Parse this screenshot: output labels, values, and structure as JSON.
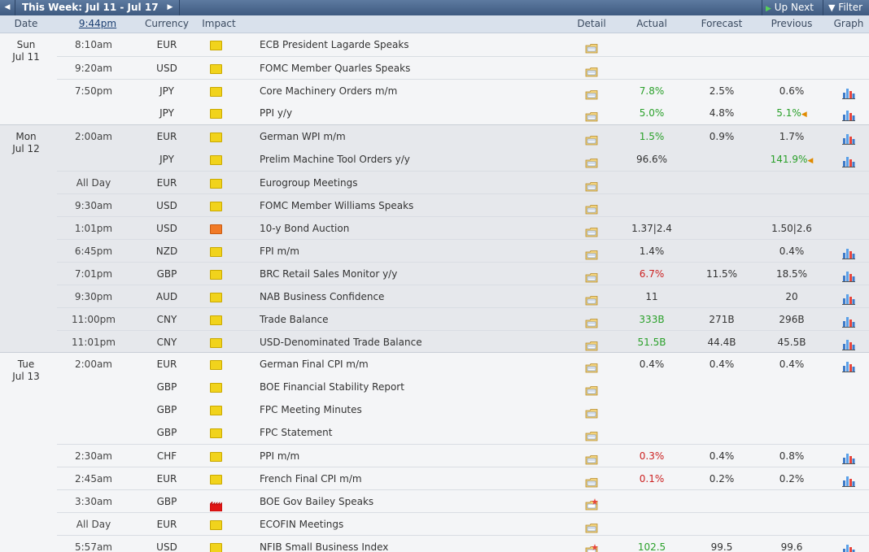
{
  "topbar": {
    "week_label": "This Week: Jul 11 - Jul 17",
    "up_next_label": "Up Next",
    "filter_label": "Filter"
  },
  "columns": {
    "date": "Date",
    "time": "9:44pm",
    "currency": "Currency",
    "impact": "Impact",
    "detail": "Detail",
    "actual": "Actual",
    "forecast": "Forecast",
    "previous": "Previous",
    "graph": "Graph"
  },
  "colors": {
    "accent_bar": "#3e5a80",
    "good": "#2aa02a",
    "bad": "#cc2222"
  },
  "days": [
    {
      "day": "Sun",
      "date": "Jul 11",
      "events": [
        {
          "time": "8:10am",
          "currency": "EUR",
          "impact": "yellow",
          "event": "ECB President Lagarde Speaks",
          "detail_icon": "folder-icon",
          "actual": "",
          "actual_class": "",
          "forecast": "",
          "previous": "",
          "revised": false,
          "graph": false,
          "sep": false
        },
        {
          "time": "9:20am",
          "currency": "USD",
          "impact": "yellow",
          "event": "FOMC Member Quarles Speaks",
          "detail_icon": "folder-icon",
          "actual": "",
          "actual_class": "",
          "forecast": "",
          "previous": "",
          "revised": false,
          "graph": false,
          "sep": true
        },
        {
          "time": "7:50pm",
          "currency": "JPY",
          "impact": "yellow",
          "event": "Core Machinery Orders m/m",
          "detail_icon": "folder-icon",
          "actual": "7.8%",
          "actual_class": "good",
          "forecast": "2.5%",
          "previous": "0.6%",
          "revised": false,
          "graph": true,
          "sep": true
        },
        {
          "time": "",
          "currency": "JPY",
          "impact": "yellow",
          "event": "PPI y/y",
          "detail_icon": "folder-icon",
          "actual": "5.0%",
          "actual_class": "good",
          "forecast": "4.8%",
          "previous": "5.1%",
          "previous_class": "good",
          "revised": true,
          "graph": true,
          "sep": false
        }
      ]
    },
    {
      "day": "Mon",
      "date": "Jul 12",
      "events": [
        {
          "time": "2:00am",
          "currency": "EUR",
          "impact": "yellow",
          "event": "German WPI m/m",
          "detail_icon": "folder-icon",
          "actual": "1.5%",
          "actual_class": "good",
          "forecast": "0.9%",
          "previous": "1.7%",
          "revised": false,
          "graph": true,
          "sep": false
        },
        {
          "time": "",
          "currency": "JPY",
          "impact": "yellow",
          "event": "Prelim Machine Tool Orders y/y",
          "detail_icon": "folder-icon",
          "actual": "96.6%",
          "actual_class": "",
          "forecast": "",
          "previous": "141.9%",
          "previous_class": "good",
          "revised": true,
          "graph": true,
          "sep": false
        },
        {
          "time": "All Day",
          "currency": "EUR",
          "impact": "yellow",
          "event": "Eurogroup Meetings",
          "detail_icon": "folder-icon",
          "actual": "",
          "actual_class": "",
          "forecast": "",
          "previous": "",
          "revised": false,
          "graph": false,
          "sep": true
        },
        {
          "time": "9:30am",
          "currency": "USD",
          "impact": "yellow",
          "event": "FOMC Member Williams Speaks",
          "detail_icon": "folder-icon",
          "actual": "",
          "actual_class": "",
          "forecast": "",
          "previous": "",
          "revised": false,
          "graph": false,
          "sep": true
        },
        {
          "time": "1:01pm",
          "currency": "USD",
          "impact": "orange",
          "event": "10-y Bond Auction",
          "detail_icon": "folder-icon",
          "actual": "1.37|2.4",
          "actual_class": "",
          "forecast": "",
          "previous": "1.50|2.6",
          "revised": false,
          "graph": false,
          "sep": true
        },
        {
          "time": "6:45pm",
          "currency": "NZD",
          "impact": "yellow",
          "event": "FPI m/m",
          "detail_icon": "folder-icon",
          "actual": "1.4%",
          "actual_class": "",
          "forecast": "",
          "previous": "0.4%",
          "revised": false,
          "graph": true,
          "sep": true
        },
        {
          "time": "7:01pm",
          "currency": "GBP",
          "impact": "yellow",
          "event": "BRC Retail Sales Monitor y/y",
          "detail_icon": "folder-icon",
          "actual": "6.7%",
          "actual_class": "bad",
          "forecast": "11.5%",
          "previous": "18.5%",
          "revised": false,
          "graph": true,
          "sep": true
        },
        {
          "time": "9:30pm",
          "currency": "AUD",
          "impact": "yellow",
          "event": "NAB Business Confidence",
          "detail_icon": "folder-icon",
          "actual": "11",
          "actual_class": "",
          "forecast": "",
          "previous": "20",
          "revised": false,
          "graph": true,
          "sep": true
        },
        {
          "time": "11:00pm",
          "currency": "CNY",
          "impact": "yellow",
          "event": "Trade Balance",
          "detail_icon": "folder-icon",
          "actual": "333B",
          "actual_class": "good",
          "forecast": "271B",
          "previous": "296B",
          "revised": false,
          "graph": true,
          "sep": true
        },
        {
          "time": "11:01pm",
          "currency": "CNY",
          "impact": "yellow",
          "event": "USD-Denominated Trade Balance",
          "detail_icon": "folder-icon",
          "actual": "51.5B",
          "actual_class": "good",
          "forecast": "44.4B",
          "previous": "45.5B",
          "revised": false,
          "graph": true,
          "sep": true
        }
      ]
    },
    {
      "day": "Tue",
      "date": "Jul 13",
      "events": [
        {
          "time": "2:00am",
          "currency": "EUR",
          "impact": "yellow",
          "event": "German Final CPI m/m",
          "detail_icon": "folder-icon",
          "actual": "0.4%",
          "actual_class": "",
          "forecast": "0.4%",
          "previous": "0.4%",
          "revised": false,
          "graph": true,
          "sep": false
        },
        {
          "time": "",
          "currency": "GBP",
          "impact": "yellow",
          "event": "BOE Financial Stability Report",
          "detail_icon": "folder-icon",
          "actual": "",
          "actual_class": "",
          "forecast": "",
          "previous": "",
          "revised": false,
          "graph": false,
          "sep": false
        },
        {
          "time": "",
          "currency": "GBP",
          "impact": "yellow",
          "event": "FPC Meeting Minutes",
          "detail_icon": "folder-icon",
          "actual": "",
          "actual_class": "",
          "forecast": "",
          "previous": "",
          "revised": false,
          "graph": false,
          "sep": false
        },
        {
          "time": "",
          "currency": "GBP",
          "impact": "yellow",
          "event": "FPC Statement",
          "detail_icon": "folder-icon",
          "actual": "",
          "actual_class": "",
          "forecast": "",
          "previous": "",
          "revised": false,
          "graph": false,
          "sep": false
        },
        {
          "time": "2:30am",
          "currency": "CHF",
          "impact": "yellow",
          "event": "PPI m/m",
          "detail_icon": "folder-icon",
          "actual": "0.3%",
          "actual_class": "bad",
          "forecast": "0.4%",
          "previous": "0.8%",
          "revised": false,
          "graph": true,
          "sep": true
        },
        {
          "time": "2:45am",
          "currency": "EUR",
          "impact": "yellow",
          "event": "French Final CPI m/m",
          "detail_icon": "folder-icon",
          "actual": "0.1%",
          "actual_class": "bad",
          "forecast": "0.2%",
          "previous": "0.2%",
          "revised": false,
          "graph": true,
          "sep": true
        },
        {
          "time": "3:30am",
          "currency": "GBP",
          "impact": "red",
          "event": "BOE Gov Bailey Speaks",
          "detail_icon": "folder-star-icon",
          "actual": "",
          "actual_class": "",
          "forecast": "",
          "previous": "",
          "revised": false,
          "graph": false,
          "sep": true
        },
        {
          "time": "All Day",
          "currency": "EUR",
          "impact": "yellow",
          "event": "ECOFIN Meetings",
          "detail_icon": "folder-icon",
          "actual": "",
          "actual_class": "",
          "forecast": "",
          "previous": "",
          "revised": false,
          "graph": false,
          "sep": true
        },
        {
          "time": "5:57am",
          "currency": "USD",
          "impact": "yellow",
          "event": "NFIB Small Business Index",
          "detail_icon": "folder-star-icon",
          "actual": "102.5",
          "actual_class": "good",
          "forecast": "99.5",
          "previous": "99.6",
          "revised": false,
          "graph": true,
          "sep": true
        }
      ]
    }
  ]
}
